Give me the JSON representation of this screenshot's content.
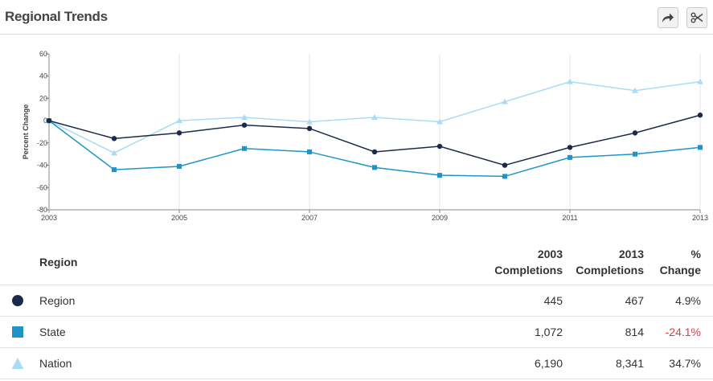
{
  "header": {
    "title": "Regional Trends",
    "share_icon": "share-arrow-icon",
    "cut_icon": "scissors-icon"
  },
  "chart_data": {
    "type": "line",
    "title": "",
    "xlabel": "",
    "ylabel": "Percent Change",
    "x": [
      2003,
      2004,
      2005,
      2006,
      2007,
      2008,
      2009,
      2010,
      2011,
      2012,
      2013
    ],
    "xticks": [
      "2003",
      "2005",
      "2007",
      "2009",
      "2011",
      "2013"
    ],
    "yticks": [
      "60",
      "40",
      "20",
      "0",
      "-20",
      "-40",
      "-60",
      "-80"
    ],
    "ylim": [
      -80,
      60
    ],
    "xlim": [
      2003,
      2013
    ],
    "grid": "vertical",
    "series": [
      {
        "name": "Region",
        "marker": "circle",
        "color": "#1b2a4a",
        "values": [
          0,
          -16,
          -11,
          -4,
          -7,
          -28,
          -23,
          -40,
          -24,
          -11,
          5
        ]
      },
      {
        "name": "State",
        "marker": "square",
        "color": "#1f94c9",
        "values": [
          0,
          -44,
          -41,
          -25,
          -28,
          -42,
          -49,
          -50,
          -33,
          -30,
          -24
        ]
      },
      {
        "name": "Nation",
        "marker": "triangle",
        "color": "#a9dcf4",
        "values": [
          0,
          -29,
          0,
          3,
          -1,
          3,
          -1,
          17,
          35,
          27,
          35
        ]
      }
    ]
  },
  "table": {
    "headers": {
      "region": "Region",
      "c2003_line1": "2003",
      "c2003_line2": "Completions",
      "c2013_line1": "2013",
      "c2013_line2": "Completions",
      "change_line1": "%",
      "change_line2": "Change"
    },
    "rows": [
      {
        "name": "Region",
        "marker": "circle",
        "color": "#1b2a4a",
        "c2003": "445",
        "c2013": "467",
        "change": "4.9%",
        "change_color": "#333333"
      },
      {
        "name": "State",
        "marker": "square",
        "color": "#1f94c9",
        "c2003": "1,072",
        "c2013": "814",
        "change": "-24.1%",
        "change_color": "#e8363a"
      },
      {
        "name": "Nation",
        "marker": "triangle",
        "color": "#a9dcf4",
        "c2003": "6,190",
        "c2013": "8,341",
        "change": "34.7%",
        "change_color": "#333333"
      }
    ]
  }
}
